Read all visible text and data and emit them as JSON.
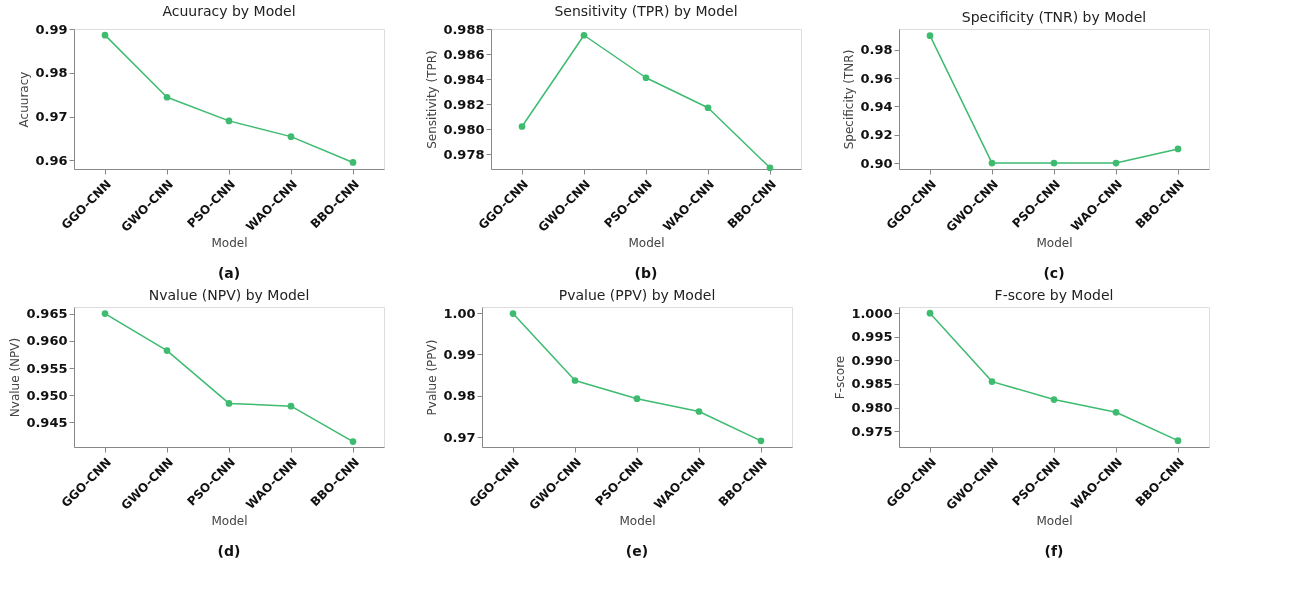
{
  "chart_data": [
    {
      "type": "line",
      "title": "Acuuracy by Model",
      "xlabel": "Model",
      "ylabel": "Acuuracy",
      "categories": [
        "GGO-CNN",
        "GWO-CNN",
        "PSO-CNN",
        "WAO-CNN",
        "BBO-CNN"
      ],
      "series": [
        {
          "color": "#3dbb6f",
          "values": [
            0.9886,
            0.9744,
            0.969,
            0.9654,
            0.9595
          ]
        }
      ],
      "ylim": [
        0.958,
        0.99
      ],
      "yticks": [
        0.96,
        0.97,
        0.98,
        0.99
      ],
      "marker": "circle",
      "grid": false,
      "annotations": [
        "(a)"
      ]
    },
    {
      "type": "line",
      "title": "Sensitivity (TPR) by Model",
      "xlabel": "Model",
      "ylabel": "Sensitivity (TPR)",
      "categories": [
        "GGO-CNN",
        "GWO-CNN",
        "PSO-CNN",
        "WAO-CNN",
        "BBO-CNN"
      ],
      "series": [
        {
          "color": "#3dbb6f",
          "values": [
            0.9802,
            0.9875,
            0.9841,
            0.9817,
            0.9769
          ]
        }
      ],
      "ylim": [
        0.9768,
        0.988
      ],
      "yticks": [
        {
          "value": 0.978,
          "label": "0.978"
        },
        {
          "value": 0.98,
          "label": "0.980"
        },
        0.982,
        0.984,
        0.986,
        0.988
      ],
      "marker": "circle",
      "grid": false,
      "annotations": [
        "(b)"
      ]
    },
    {
      "type": "line",
      "title": "Specificity (TNR) by Model",
      "xlabel": "Model",
      "ylabel": "Specificity (TNR)",
      "categories": [
        "GGO-CNN",
        "GWO-CNN",
        "PSO-CNN",
        "WAO-CNN",
        "BBO-CNN"
      ],
      "series": [
        {
          "color": "#3dbb6f",
          "values": [
            0.99,
            0.9,
            0.9,
            0.9,
            0.91
          ]
        }
      ],
      "ylim": [
        0.8958,
        0.9947
      ],
      "yticks": [
        {
          "value": 0.9,
          "label": "0.90"
        },
        0.92,
        0.94,
        0.96,
        0.98
      ],
      "marker": "circle",
      "grid": false,
      "annotations": [
        "(c)"
      ]
    },
    {
      "type": "line",
      "title": "Nvalue (NPV) by Model",
      "xlabel": "Model",
      "ylabel": "Nvalue (NPV)",
      "categories": [
        "GGO-CNN",
        "GWO-CNN",
        "PSO-CNN",
        "WAO-CNN",
        "BBO-CNN"
      ],
      "series": [
        {
          "color": "#3dbb6f",
          "values": [
            0.965,
            0.9582,
            0.9485,
            0.948,
            0.9415
          ]
        }
      ],
      "ylim": [
        0.9405,
        0.9662
      ],
      "yticks": [
        0.945,
        {
          "value": 0.95,
          "label": "0.950"
        },
        0.955,
        {
          "value": 0.96,
          "label": "0.960"
        },
        0.965
      ],
      "marker": "circle",
      "grid": false,
      "annotations": [
        "(d)"
      ]
    },
    {
      "type": "line",
      "title": "Pvalue (PPV) by Model",
      "xlabel": "Model",
      "ylabel": "Pvalue (PPV)",
      "categories": [
        "GGO-CNN",
        "GWO-CNN",
        "PSO-CNN",
        "WAO-CNN",
        "BBO-CNN"
      ],
      "series": [
        {
          "color": "#3dbb6f",
          "values": [
            0.9999,
            0.9837,
            0.9793,
            0.9762,
            0.9691
          ]
        }
      ],
      "ylim": [
        0.9676,
        1.0015
      ],
      "yticks": [
        0.97,
        0.98,
        0.99,
        {
          "value": 1.0,
          "label": "1.00"
        }
      ],
      "marker": "circle",
      "grid": false,
      "annotations": [
        "(e)"
      ]
    },
    {
      "type": "line",
      "title": "F-score by Model",
      "xlabel": "Model",
      "ylabel": "F-score",
      "categories": [
        "GGO-CNN",
        "GWO-CNN",
        "PSO-CNN",
        "WAO-CNN",
        "BBO-CNN"
      ],
      "series": [
        {
          "color": "#3dbb6f",
          "values": [
            1.0,
            0.9855,
            0.9817,
            0.979,
            0.973
          ]
        }
      ],
      "ylim": [
        0.97165,
        1.0013
      ],
      "yticks": [
        0.975,
        {
          "value": 0.98,
          "label": "0.980"
        },
        0.985,
        {
          "value": 0.99,
          "label": "0.990"
        },
        0.995,
        {
          "value": 1.0,
          "label": "1.000"
        }
      ],
      "marker": "circle",
      "grid": false,
      "annotations": [
        "(f)"
      ]
    }
  ]
}
